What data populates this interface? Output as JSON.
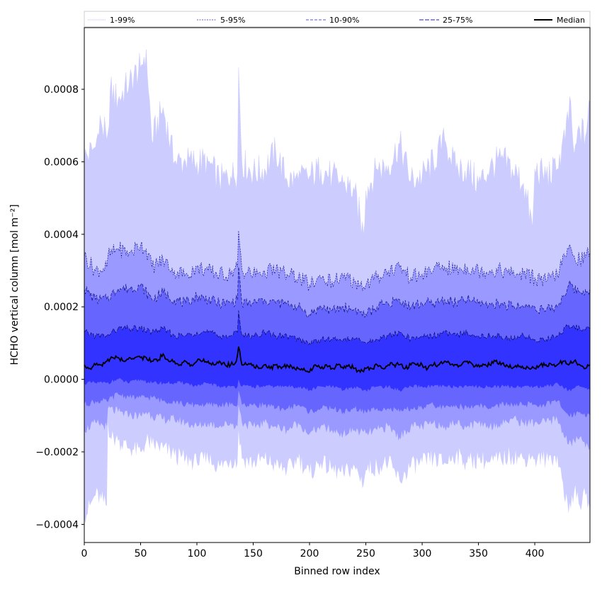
{
  "chart_data": {
    "type": "area",
    "title": "",
    "xlabel": "Binned row index",
    "ylabel": "HCHO vertical column [mol m⁻²]",
    "xlim": [
      0,
      449
    ],
    "ylim": [
      -0.00045,
      0.00097
    ],
    "x_ticks": [
      0,
      50,
      100,
      150,
      200,
      250,
      300,
      350,
      400
    ],
    "x_tick_labels": [
      "0",
      "50",
      "100",
      "150",
      "200",
      "250",
      "300",
      "350",
      "400"
    ],
    "y_ticks": [
      -0.0004,
      -0.0002,
      0.0,
      0.0002,
      0.0004,
      0.0006,
      0.0008
    ],
    "y_tick_labels": [
      "−0.0004",
      "−0.0002",
      "0.0000",
      "0.0002",
      "0.0004",
      "0.0006",
      "0.0008"
    ],
    "grid": false,
    "legend_position": "top (full-width strip)",
    "legend": [
      "1-99%",
      "5-95%",
      "10-90%",
      "25-75%",
      "Median"
    ],
    "series": [
      {
        "name": "1-99%",
        "fill_color": "#ccccff",
        "line_color": "#c8c8f8",
        "x": [
          0,
          10,
          15,
          20,
          21,
          23,
          30,
          40,
          50,
          55,
          60,
          70,
          80,
          90,
          100,
          110,
          120,
          130,
          136,
          137,
          140,
          150,
          160,
          170,
          180,
          190,
          200,
          210,
          220,
          230,
          240,
          248,
          250,
          260,
          270,
          280,
          290,
          300,
          310,
          320,
          330,
          340,
          350,
          360,
          370,
          380,
          390,
          398,
          400,
          410,
          420,
          430,
          431,
          435,
          440,
          445,
          449
        ],
        "upper": [
          0.00061,
          0.00064,
          0.00071,
          0.00066,
          0.00068,
          0.0008,
          0.00077,
          0.00082,
          0.00086,
          0.00091,
          0.00066,
          0.00075,
          0.0006,
          0.0006,
          0.0006,
          0.0006,
          0.00055,
          0.00056,
          0.00057,
          0.00086,
          0.0006,
          0.00057,
          0.00058,
          0.00063,
          0.00055,
          0.00055,
          0.00056,
          0.00058,
          0.00056,
          0.00054,
          0.00052,
          0.0004,
          0.00052,
          0.00058,
          0.00059,
          0.00065,
          0.00055,
          0.00056,
          0.0006,
          0.00066,
          0.00058,
          0.00058,
          0.00054,
          0.00058,
          0.00061,
          0.00058,
          0.00054,
          0.00042,
          0.00058,
          0.00056,
          0.00058,
          0.00071,
          0.00078,
          0.00062,
          0.00069,
          0.00067,
          0.00076
        ],
        "lower": [
          -0.00038,
          -0.00032,
          -0.00033,
          -0.00035,
          -0.00012,
          -0.00016,
          -0.00017,
          -0.00019,
          -0.0002,
          -0.00017,
          -0.00018,
          -0.00019,
          -0.00021,
          -0.00022,
          -0.00023,
          -0.00022,
          -0.00024,
          -0.00022,
          -0.00023,
          -0.00014,
          -0.00022,
          -0.00023,
          -0.00022,
          -0.00024,
          -0.00025,
          -0.00022,
          -0.00026,
          -0.00023,
          -0.00025,
          -0.00026,
          -0.00024,
          -0.00029,
          -0.00025,
          -0.00024,
          -0.00023,
          -0.00028,
          -0.00024,
          -0.00023,
          -0.00022,
          -0.00023,
          -0.00021,
          -0.00023,
          -0.00022,
          -0.00023,
          -0.00022,
          -0.00021,
          -0.00022,
          -0.00021,
          -0.00022,
          -0.00022,
          -0.00021,
          -0.00037,
          -0.00034,
          -0.00031,
          -0.00035,
          -0.00032,
          -0.00036
        ]
      },
      {
        "name": "5-95%",
        "fill_color": "#9999ff",
        "line_color": "#1a1a9a",
        "x": [
          0,
          10,
          20,
          21,
          30,
          40,
          50,
          55,
          60,
          70,
          80,
          90,
          100,
          110,
          120,
          130,
          136,
          137,
          140,
          150,
          160,
          170,
          180,
          190,
          200,
          210,
          220,
          230,
          240,
          250,
          260,
          270,
          280,
          290,
          300,
          310,
          320,
          330,
          340,
          350,
          360,
          370,
          380,
          390,
          400,
          410,
          420,
          430,
          435,
          440,
          449
        ],
        "upper": [
          0.00034,
          0.0003,
          0.00031,
          0.00034,
          0.00036,
          0.00035,
          0.00037,
          0.00036,
          0.00031,
          0.00033,
          0.0003,
          0.00029,
          0.00031,
          0.0003,
          0.00029,
          0.00029,
          0.00031,
          0.00041,
          0.0003,
          0.00029,
          0.0003,
          0.0003,
          0.00029,
          0.00028,
          0.00026,
          0.00028,
          0.00027,
          0.00028,
          0.00027,
          0.00026,
          0.00028,
          0.0003,
          0.00031,
          0.00028,
          0.00029,
          0.0003,
          0.00031,
          0.0003,
          0.00031,
          0.0003,
          0.0003,
          0.0003,
          0.00029,
          0.00029,
          0.00028,
          0.00027,
          0.00029,
          0.00036,
          0.00034,
          0.00033,
          0.00035
        ],
        "lower": [
          -0.00014,
          -0.00012,
          -0.00013,
          -8e-05,
          -9e-05,
          -0.0001,
          -0.0001,
          -9e-05,
          -0.0001,
          -0.00011,
          -0.00011,
          -0.00012,
          -0.00013,
          -0.00012,
          -0.00013,
          -0.00012,
          -0.00013,
          -7e-05,
          -0.00012,
          -0.00013,
          -0.00012,
          -0.00013,
          -0.00014,
          -0.00012,
          -0.00015,
          -0.00013,
          -0.00014,
          -0.00015,
          -0.00014,
          -0.00015,
          -0.00014,
          -0.00013,
          -0.00016,
          -0.00013,
          -0.00013,
          -0.00012,
          -0.00013,
          -0.00012,
          -0.00013,
          -0.00012,
          -0.00013,
          -0.00012,
          -0.00011,
          -0.00012,
          -0.00012,
          -0.00012,
          -0.00011,
          -0.00018,
          -0.00017,
          -0.00016,
          -0.00019
        ]
      },
      {
        "name": "10-90%",
        "fill_color": "#6666ff",
        "line_color": "#10107a",
        "x": [
          0,
          10,
          20,
          30,
          40,
          50,
          60,
          70,
          80,
          90,
          100,
          110,
          120,
          130,
          136,
          137,
          140,
          150,
          160,
          170,
          180,
          190,
          200,
          210,
          220,
          230,
          240,
          250,
          260,
          270,
          280,
          290,
          300,
          310,
          320,
          330,
          340,
          350,
          360,
          370,
          380,
          390,
          400,
          410,
          420,
          430,
          440,
          449
        ],
        "upper": [
          0.00025,
          0.00022,
          0.00022,
          0.00025,
          0.00025,
          0.00026,
          0.00022,
          0.00024,
          0.00022,
          0.00021,
          0.00023,
          0.00022,
          0.00021,
          0.00021,
          0.00022,
          0.00031,
          0.00021,
          0.00021,
          0.00022,
          0.00021,
          0.00021,
          0.0002,
          0.00018,
          0.0002,
          0.00019,
          0.0002,
          0.00019,
          0.00018,
          0.0002,
          0.00021,
          0.00022,
          0.0002,
          0.00021,
          0.00021,
          0.00022,
          0.00021,
          0.00022,
          0.00021,
          0.00021,
          0.00021,
          0.0002,
          0.0002,
          0.0002,
          0.00019,
          0.0002,
          0.00026,
          0.00024,
          0.00025
        ],
        "lower": [
          -7e-05,
          -6e-05,
          -6e-05,
          -4e-05,
          -5e-05,
          -5e-05,
          -5e-05,
          -6e-05,
          -6e-05,
          -7e-05,
          -7e-05,
          -7e-05,
          -7e-05,
          -7e-05,
          -7e-05,
          -3e-05,
          -7e-05,
          -7e-05,
          -7e-05,
          -8e-05,
          -8e-05,
          -7e-05,
          -9e-05,
          -8e-05,
          -8e-05,
          -9e-05,
          -8e-05,
          -9e-05,
          -8e-05,
          -8e-05,
          -9e-05,
          -8e-05,
          -8e-05,
          -7e-05,
          -8e-05,
          -7e-05,
          -8e-05,
          -7e-05,
          -8e-05,
          -7e-05,
          -7e-05,
          -7e-05,
          -7e-05,
          -7e-05,
          -6e-05,
          -0.0001,
          -9e-05,
          -0.0001
        ]
      },
      {
        "name": "25-75%",
        "fill_color": "#3333ff",
        "line_color": "#0c0c60",
        "x": [
          0,
          10,
          20,
          30,
          40,
          50,
          60,
          70,
          80,
          90,
          100,
          110,
          120,
          130,
          136,
          137,
          140,
          150,
          160,
          170,
          180,
          190,
          200,
          210,
          220,
          230,
          240,
          250,
          260,
          270,
          280,
          290,
          300,
          310,
          320,
          330,
          340,
          350,
          360,
          370,
          380,
          390,
          400,
          410,
          420,
          430,
          440,
          449
        ],
        "upper": [
          0.00013,
          0.00012,
          0.00012,
          0.00014,
          0.00014,
          0.00014,
          0.00013,
          0.00014,
          0.00012,
          0.00012,
          0.00013,
          0.00013,
          0.00012,
          0.00012,
          0.00013,
          0.00019,
          0.00012,
          0.00012,
          0.00013,
          0.00012,
          0.00012,
          0.00011,
          0.0001,
          0.00011,
          0.00011,
          0.00011,
          0.00011,
          0.0001,
          0.00011,
          0.00012,
          0.00013,
          0.00011,
          0.00012,
          0.00012,
          0.00013,
          0.00012,
          0.00013,
          0.00012,
          0.00012,
          0.00012,
          0.00011,
          0.00012,
          0.00011,
          0.00011,
          0.00012,
          0.00015,
          0.00014,
          0.00014
        ],
        "lower": [
          -1e-05,
          -1e-05,
          -1e-05,
          0.0,
          -1e-05,
          0.0,
          -1e-05,
          -1e-05,
          -1e-05,
          -1e-05,
          -2e-05,
          -1e-05,
          -2e-05,
          -2e-05,
          -2e-05,
          0.0,
          -2e-05,
          -2e-05,
          -2e-05,
          -2e-05,
          -2e-05,
          -2e-05,
          -3e-05,
          -2e-05,
          -2e-05,
          -3e-05,
          -2e-05,
          -3e-05,
          -2e-05,
          -2e-05,
          -3e-05,
          -2e-05,
          -2e-05,
          -2e-05,
          -2e-05,
          -2e-05,
          -2e-05,
          -2e-05,
          -2e-05,
          -2e-05,
          -2e-05,
          -2e-05,
          -2e-05,
          -2e-05,
          -1e-05,
          -3e-05,
          -2e-05,
          -3e-05
        ]
      },
      {
        "name": "Median",
        "line_color": "#000000",
        "x": [
          0,
          5,
          10,
          15,
          20,
          25,
          30,
          35,
          40,
          45,
          50,
          55,
          60,
          65,
          70,
          75,
          80,
          85,
          90,
          95,
          100,
          105,
          110,
          115,
          120,
          125,
          130,
          135,
          137,
          140,
          145,
          150,
          155,
          160,
          165,
          170,
          175,
          180,
          185,
          190,
          195,
          200,
          205,
          210,
          215,
          220,
          225,
          230,
          235,
          240,
          245,
          250,
          255,
          260,
          265,
          270,
          275,
          280,
          285,
          290,
          295,
          300,
          305,
          310,
          315,
          320,
          325,
          330,
          335,
          340,
          345,
          350,
          355,
          360,
          365,
          370,
          375,
          380,
          385,
          390,
          395,
          400,
          405,
          410,
          415,
          420,
          425,
          430,
          435,
          440,
          445,
          449
        ],
        "values": [
          4e-05,
          3e-05,
          4e-05,
          4e-05,
          5e-05,
          6e-05,
          6e-05,
          5e-05,
          6e-05,
          6e-05,
          6e-05,
          6e-05,
          5e-05,
          5e-05,
          7e-05,
          5e-05,
          5e-05,
          4e-05,
          5e-05,
          4e-05,
          5e-05,
          5e-05,
          5e-05,
          4e-05,
          5e-05,
          4e-05,
          4e-05,
          5e-05,
          9e-05,
          4e-05,
          4e-05,
          4e-05,
          3e-05,
          4e-05,
          3e-05,
          4e-05,
          3e-05,
          4e-05,
          3e-05,
          3e-05,
          3e-05,
          2e-05,
          4e-05,
          3e-05,
          4e-05,
          3e-05,
          4e-05,
          3e-05,
          4e-05,
          3e-05,
          2e-05,
          3e-05,
          3e-05,
          4e-05,
          3e-05,
          4e-05,
          4e-05,
          4e-05,
          3e-05,
          4e-05,
          4e-05,
          4e-05,
          3e-05,
          4e-05,
          4e-05,
          5e-05,
          4e-05,
          4e-05,
          4e-05,
          5e-05,
          4e-05,
          4e-05,
          4e-05,
          4e-05,
          5e-05,
          4e-05,
          4e-05,
          3e-05,
          4e-05,
          3e-05,
          3e-05,
          3e-05,
          4e-05,
          4e-05,
          4e-05,
          4e-05,
          5e-05,
          4e-05,
          5e-05,
          4e-05,
          3e-05,
          4e-05
        ]
      }
    ]
  }
}
